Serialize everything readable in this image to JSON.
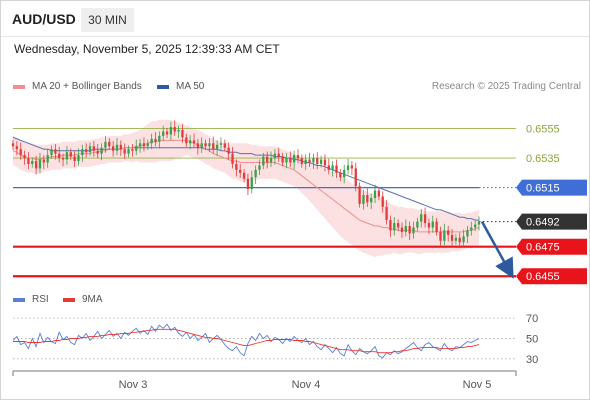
{
  "header": {
    "pair": "AUD/USD",
    "timeframe": "30 MIN",
    "datetime": "Wednesday, November 5, 2025 12:39:33 AM CET"
  },
  "legend": {
    "bollinger": {
      "label": "MA 20 + Bollinger Bands",
      "color": "#f08f8f"
    },
    "ma50": {
      "label": "MA 50",
      "color": "#2c5a9c"
    },
    "rsi": {
      "label": "RSI",
      "color": "#5b7fd6"
    },
    "ma9": {
      "label": "9MA",
      "color": "#e53935"
    }
  },
  "copyright": "Research © 2025 Trading Central",
  "chart_data": [
    {
      "type": "candlestick",
      "title": "",
      "ylim": [
        0.6445,
        0.6575
      ],
      "levels": [
        {
          "value": 0.6555,
          "label": "0.6555",
          "role": "resistance",
          "style": "thin",
          "color": "#9ab04a"
        },
        {
          "value": 0.6535,
          "label": "0.6535",
          "role": "resistance",
          "style": "thin",
          "color": "#9ab04a"
        },
        {
          "value": 0.6515,
          "label": "0.6515",
          "role": "pivot",
          "style": "solid",
          "color": "#3f6fd6"
        },
        {
          "value": 0.6492,
          "label": "0.6492",
          "role": "last-price",
          "style": "dotted",
          "color": "#333333"
        },
        {
          "value": 0.6475,
          "label": "0.6475",
          "role": "support",
          "style": "thick",
          "color": "#e8141c"
        },
        {
          "value": 0.6455,
          "label": "0.6455",
          "role": "support",
          "style": "thick",
          "color": "#e8141c"
        }
      ],
      "x_tick_labels": [
        "Nov 3",
        "Nov 4",
        "Nov 5"
      ],
      "forecast_arrow": {
        "from": 0.6492,
        "to": 0.6455,
        "color": "#2c5a9c"
      },
      "colors": {
        "up": "#3aa04a",
        "down": "#e33b3b",
        "band": "#f9d7d7",
        "ma20": "#f08f8f",
        "ma50": "#5c6fb0"
      },
      "close": [
        0.6543,
        0.6541,
        0.6537,
        0.6535,
        0.6531,
        0.6533,
        0.6528,
        0.6534,
        0.6532,
        0.6537,
        0.6541,
        0.6538,
        0.6535,
        0.6534,
        0.6539,
        0.6536,
        0.6533,
        0.6537,
        0.6541,
        0.6539,
        0.6543,
        0.654,
        0.6538,
        0.6542,
        0.6546,
        0.6543,
        0.654,
        0.6544,
        0.6541,
        0.6538,
        0.6541,
        0.654,
        0.6543,
        0.6545,
        0.6543,
        0.6545,
        0.6548,
        0.6546,
        0.655,
        0.6553,
        0.6551,
        0.6556,
        0.6553,
        0.6554,
        0.6549,
        0.6545,
        0.6547,
        0.6545,
        0.6542,
        0.6545,
        0.6543,
        0.6545,
        0.6541,
        0.6544,
        0.6545,
        0.6542,
        0.6538,
        0.6531,
        0.6527,
        0.6525,
        0.6521,
        0.6514,
        0.6522,
        0.6527,
        0.653,
        0.6536,
        0.6532,
        0.6535,
        0.6538,
        0.6536,
        0.6532,
        0.6535,
        0.6532,
        0.6537,
        0.6535,
        0.6531,
        0.6534,
        0.6532,
        0.6535,
        0.6531,
        0.6534,
        0.653,
        0.6527,
        0.653,
        0.6525,
        0.6522,
        0.6527,
        0.653,
        0.6528,
        0.6516,
        0.6504,
        0.651,
        0.6505,
        0.6508,
        0.6513,
        0.6509,
        0.6502,
        0.6493,
        0.6486,
        0.6491,
        0.6488,
        0.6485,
        0.6489,
        0.6484,
        0.6488,
        0.6492,
        0.6497,
        0.6491,
        0.6488,
        0.6492,
        0.6485,
        0.6479,
        0.6486,
        0.6483,
        0.6479,
        0.6481,
        0.6478,
        0.6482,
        0.6486,
        0.6488,
        0.649,
        0.6492
      ],
      "ma20": [
        0.654,
        0.6539,
        0.6537,
        0.6536,
        0.6535,
        0.6535,
        0.6534,
        0.6534,
        0.6535,
        0.6535,
        0.6536,
        0.6536,
        0.6536,
        0.6537,
        0.6537,
        0.6537,
        0.6537,
        0.6538,
        0.6538,
        0.6538,
        0.6538,
        0.6539,
        0.6539,
        0.654,
        0.654,
        0.6541,
        0.6541,
        0.6541,
        0.6541,
        0.6542,
        0.6542,
        0.6542,
        0.6543,
        0.6543,
        0.6544,
        0.6545,
        0.6546,
        0.6546,
        0.6547,
        0.6547,
        0.6547,
        0.6547,
        0.6547,
        0.6547,
        0.6547,
        0.6547,
        0.6546,
        0.6545,
        0.6544,
        0.6543,
        0.6541,
        0.654,
        0.6538,
        0.6537,
        0.6536,
        0.6535,
        0.6534,
        0.6533,
        0.6533,
        0.6532,
        0.6532,
        0.6532,
        0.6532,
        0.6532,
        0.6532,
        0.6532,
        0.6532,
        0.6532,
        0.6532,
        0.6531,
        0.653,
        0.6529,
        0.6528,
        0.6527,
        0.6525,
        0.6523,
        0.6521,
        0.6519,
        0.6517,
        0.6515,
        0.6513,
        0.6511,
        0.6509,
        0.6507,
        0.6505,
        0.6503,
        0.6501,
        0.6499,
        0.6497,
        0.6495,
        0.6493,
        0.6492,
        0.6491,
        0.649,
        0.6489,
        0.6489,
        0.6488,
        0.6488,
        0.6487,
        0.6487,
        0.6486,
        0.6486,
        0.6486,
        0.6486,
        0.6486,
        0.6485,
        0.6485,
        0.6485,
        0.6485,
        0.6485,
        0.6485,
        0.6485,
        0.6485,
        0.6485,
        0.6485,
        0.6485,
        0.6485,
        0.6485,
        0.6486,
        0.6486,
        0.6487,
        0.6488
      ],
      "ma50": [
        0.6549,
        0.6548,
        0.6547,
        0.6546,
        0.6545,
        0.6544,
        0.6543,
        0.6542,
        0.6541,
        0.6541,
        0.654,
        0.654,
        0.654,
        0.654,
        0.654,
        0.654,
        0.654,
        0.654,
        0.654,
        0.654,
        0.654,
        0.6541,
        0.6541,
        0.6541,
        0.6541,
        0.6541,
        0.6541,
        0.6541,
        0.6541,
        0.6542,
        0.6542,
        0.6542,
        0.6542,
        0.6542,
        0.6542,
        0.6542,
        0.6542,
        0.6542,
        0.6542,
        0.6542,
        0.6542,
        0.6542,
        0.6542,
        0.6542,
        0.6542,
        0.6542,
        0.6542,
        0.6542,
        0.6542,
        0.6542,
        0.6541,
        0.6541,
        0.6541,
        0.6541,
        0.654,
        0.654,
        0.6539,
        0.6539,
        0.6539,
        0.6538,
        0.6538,
        0.6538,
        0.6538,
        0.6537,
        0.6537,
        0.6537,
        0.6537,
        0.6537,
        0.6536,
        0.6536,
        0.6536,
        0.6535,
        0.6535,
        0.6534,
        0.6534,
        0.6533,
        0.6532,
        0.6532,
        0.6531,
        0.653,
        0.653,
        0.6529,
        0.6528,
        0.6527,
        0.6526,
        0.6525,
        0.6524,
        0.6523,
        0.6522,
        0.6521,
        0.652,
        0.6519,
        0.6518,
        0.6517,
        0.6516,
        0.6515,
        0.6514,
        0.6513,
        0.6512,
        0.6511,
        0.651,
        0.6509,
        0.6508,
        0.6507,
        0.6506,
        0.6505,
        0.6504,
        0.6503,
        0.6502,
        0.6501,
        0.65,
        0.65,
        0.6499,
        0.6498,
        0.6497,
        0.6496,
        0.6495,
        0.6495,
        0.6494,
        0.6494,
        0.6493,
        0.6493
      ],
      "band_width": [
        0.001,
        0.001,
        0.001,
        0.001,
        0.001,
        0.001,
        0.001,
        0.001,
        0.0009,
        0.0009,
        0.0009,
        0.0009,
        0.0009,
        0.0009,
        0.0009,
        0.0009,
        0.0009,
        0.0009,
        0.0009,
        0.0009,
        0.0009,
        0.0009,
        0.0009,
        0.0009,
        0.0009,
        0.0009,
        0.0009,
        0.0009,
        0.0009,
        0.0009,
        0.0009,
        0.001,
        0.001,
        0.0011,
        0.0012,
        0.0013,
        0.0014,
        0.0014,
        0.0014,
        0.0014,
        0.0014,
        0.0014,
        0.0013,
        0.0012,
        0.0011,
        0.001,
        0.001,
        0.001,
        0.001,
        0.001,
        0.001,
        0.001,
        0.001,
        0.001,
        0.001,
        0.001,
        0.0011,
        0.0012,
        0.0012,
        0.0013,
        0.0013,
        0.0013,
        0.0012,
        0.0012,
        0.0011,
        0.0011,
        0.0011,
        0.0011,
        0.0011,
        0.0011,
        0.0011,
        0.0011,
        0.0011,
        0.0011,
        0.0011,
        0.0012,
        0.0012,
        0.0013,
        0.0014,
        0.0015,
        0.0016,
        0.0017,
        0.0018,
        0.0019,
        0.002,
        0.0021,
        0.0021,
        0.0021,
        0.0021,
        0.0021,
        0.0021,
        0.0021,
        0.0021,
        0.0021,
        0.0021,
        0.002,
        0.0019,
        0.0018,
        0.0017,
        0.0016,
        0.0016,
        0.0016,
        0.0015,
        0.0015,
        0.0015,
        0.0015,
        0.0015,
        0.0014,
        0.0014,
        0.0014,
        0.0014,
        0.0014,
        0.0014,
        0.0014,
        0.0013,
        0.0013,
        0.0013,
        0.0012,
        0.0012,
        0.0012,
        0.0012,
        0.0012
      ]
    },
    {
      "type": "line",
      "title": "",
      "ylim": [
        20,
        75
      ],
      "y_ticks": [
        70,
        50,
        30
      ],
      "series": [
        {
          "name": "RSI",
          "color": "#5b7fd6",
          "values": [
            48,
            52,
            44,
            46,
            40,
            50,
            42,
            55,
            46,
            51,
            47,
            45,
            56,
            49,
            52,
            46,
            44,
            53,
            50,
            55,
            48,
            52,
            57,
            50,
            54,
            58,
            52,
            55,
            50,
            56,
            53,
            57,
            60,
            55,
            58,
            54,
            62,
            57,
            63,
            60,
            64,
            58,
            61,
            55,
            52,
            56,
            50,
            54,
            48,
            51,
            55,
            46,
            50,
            53,
            49,
            44,
            40,
            38,
            42,
            36,
            33,
            45,
            52,
            48,
            55,
            50,
            53,
            47,
            51,
            49,
            45,
            50,
            47,
            52,
            48,
            46,
            50,
            44,
            47,
            42,
            39,
            44,
            40,
            36,
            41,
            35,
            33,
            44,
            38,
            34,
            40,
            37,
            35,
            38,
            42,
            33,
            31,
            36,
            34,
            38,
            35,
            37,
            40,
            43,
            46,
            41,
            38,
            44,
            46,
            42,
            40,
            38,
            45,
            40,
            38,
            42,
            41,
            44,
            47,
            46,
            48,
            50
          ]
        },
        {
          "name": "9MA",
          "color": "#e53935",
          "values": [
            47,
            47,
            47,
            47,
            46,
            46,
            46,
            46,
            47,
            47,
            47,
            48,
            48,
            49,
            49,
            50,
            50,
            50,
            51,
            51,
            52,
            52,
            52,
            53,
            53,
            54,
            54,
            54,
            55,
            55,
            55,
            56,
            56,
            57,
            57,
            58,
            58,
            59,
            59,
            59,
            59,
            59,
            59,
            58,
            57,
            56,
            55,
            54,
            53,
            52,
            51,
            51,
            50,
            50,
            49,
            48,
            47,
            46,
            45,
            44,
            43,
            43,
            44,
            45,
            46,
            47,
            48,
            48,
            49,
            49,
            49,
            49,
            49,
            48,
            48,
            48,
            47,
            47,
            46,
            45,
            44,
            43,
            42,
            41,
            40,
            39,
            39,
            39,
            38,
            38,
            38,
            37,
            37,
            37,
            37,
            36,
            36,
            36,
            36,
            37,
            37,
            38,
            38,
            39,
            40,
            40,
            41,
            41,
            41,
            41,
            41,
            40,
            40,
            40,
            40,
            40,
            41,
            41,
            42,
            42,
            43,
            44
          ]
        }
      ],
      "x_tick_labels": [
        "Nov 3",
        "Nov 4",
        "Nov 5"
      ]
    }
  ]
}
